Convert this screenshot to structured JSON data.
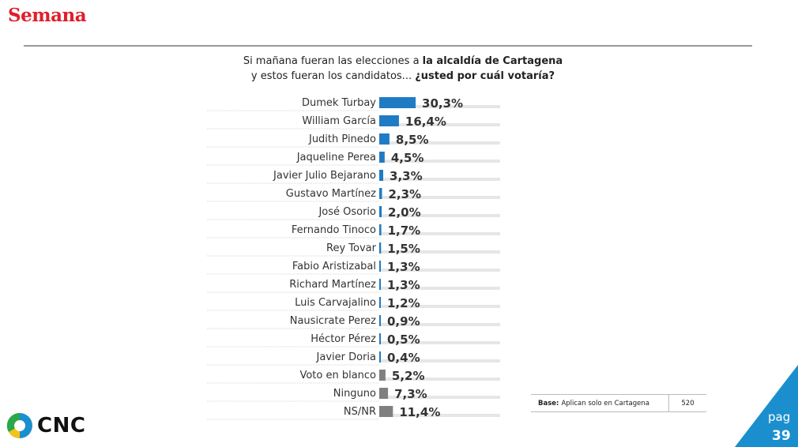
{
  "brand": "Semana",
  "question": {
    "line1_pre": "Si mañana fueran las elecciones a ",
    "line1_bold": "la alcaldía de Cartagena",
    "line2_pre": "y estos fueran los candidatos... ",
    "line2_bold": "¿usted por cuál votaría?"
  },
  "chart_data": {
    "type": "bar",
    "orientation": "horizontal",
    "categories": [
      "Dumek Turbay",
      "William García",
      "Judith Pinedo",
      "Jaqueline Perea",
      "Javier Julio Bejarano",
      "Gustavo Martínez",
      "José Osorio",
      "Fernando Tinoco",
      "Rey Tovar",
      "Fabio Aristizabal",
      "Richard Martínez",
      "Luis Carvajalino",
      "Nausicrate Perez",
      "Héctor Pérez",
      "Javier Doria",
      "Voto en blanco",
      "Ninguno",
      "NS/NR"
    ],
    "values": [
      30.3,
      16.4,
      8.5,
      4.5,
      3.3,
      2.3,
      2.0,
      1.7,
      1.5,
      1.3,
      1.3,
      1.2,
      0.9,
      0.5,
      0.4,
      5.2,
      7.3,
      11.4
    ],
    "labels": [
      "30,3%",
      "16,4%",
      "8,5%",
      "4,5%",
      "3,3%",
      "2,3%",
      "2,0%",
      "1,7%",
      "1,5%",
      "1,3%",
      "1,3%",
      "1,2%",
      "0,9%",
      "0,5%",
      "0,4%",
      "5,2%",
      "7,3%",
      "11,4%"
    ],
    "group": [
      "candidate",
      "candidate",
      "candidate",
      "candidate",
      "candidate",
      "candidate",
      "candidate",
      "candidate",
      "candidate",
      "candidate",
      "candidate",
      "candidate",
      "candidate",
      "candidate",
      "candidate",
      "other",
      "other",
      "other"
    ],
    "colors": {
      "candidate": "#1f7bc4",
      "other": "#808080",
      "track": "#e6e6e6"
    },
    "xlim": [
      0,
      100
    ],
    "grid": false
  },
  "base": {
    "label": "Base:",
    "text": "Aplican solo en Cartagena",
    "value": "520"
  },
  "page": {
    "label": "pag",
    "number": "39"
  },
  "logo": {
    "text": "CNC"
  },
  "accent_color": "#1b8fce"
}
